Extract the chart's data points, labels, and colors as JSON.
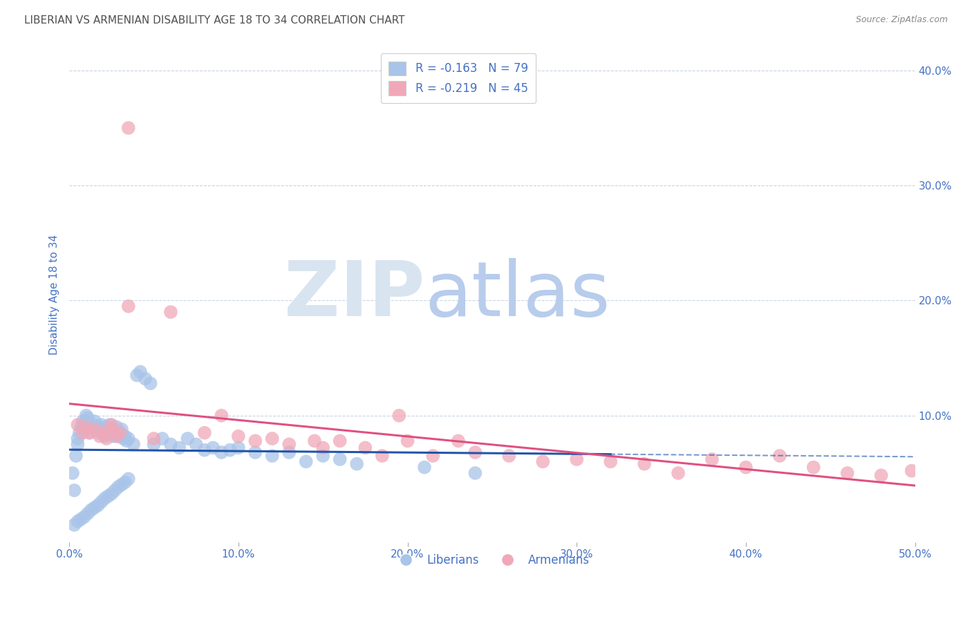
{
  "title": "LIBERIAN VS ARMENIAN DISABILITY AGE 18 TO 34 CORRELATION CHART",
  "source": "Source: ZipAtlas.com",
  "ylabel": "Disability Age 18 to 34",
  "xlim": [
    0.0,
    0.5
  ],
  "ylim": [
    -0.01,
    0.42
  ],
  "xticks": [
    0.0,
    0.1,
    0.2,
    0.3,
    0.4,
    0.5
  ],
  "yticks": [
    0.1,
    0.2,
    0.3,
    0.4
  ],
  "xtick_labels": [
    "0.0%",
    "10.0%",
    "20.0%",
    "30.0%",
    "40.0%",
    "50.0%"
  ],
  "ytick_labels": [
    "10.0%",
    "20.0%",
    "30.0%",
    "40.0%"
  ],
  "liberian_R": -0.163,
  "liberian_N": 79,
  "armenian_R": -0.219,
  "armenian_N": 45,
  "liberian_color": "#a8c4e8",
  "armenian_color": "#f0a8b8",
  "liberian_line_color": "#2255aa",
  "armenian_line_color": "#e05080",
  "watermark_zip_color": "#d8e4f0",
  "watermark_atlas_color": "#b8ccec",
  "background_color": "#ffffff",
  "grid_color": "#c8d4e4",
  "title_color": "#505050",
  "tick_label_color": "#4472c4",
  "legend_text_color": "#303030",
  "liberian_x": [
    0.002,
    0.003,
    0.004,
    0.005,
    0.005,
    0.006,
    0.007,
    0.008,
    0.008,
    0.009,
    0.01,
    0.01,
    0.011,
    0.012,
    0.013,
    0.014,
    0.015,
    0.016,
    0.017,
    0.018,
    0.019,
    0.02,
    0.021,
    0.022,
    0.023,
    0.024,
    0.025,
    0.026,
    0.027,
    0.028,
    0.029,
    0.03,
    0.031,
    0.032,
    0.033,
    0.034,
    0.035,
    0.038,
    0.04,
    0.042,
    0.045,
    0.048,
    0.05,
    0.055,
    0.06,
    0.065,
    0.07,
    0.075,
    0.08,
    0.085,
    0.09,
    0.095,
    0.1,
    0.11,
    0.12,
    0.13,
    0.14,
    0.15,
    0.16,
    0.17,
    0.003,
    0.005,
    0.007,
    0.009,
    0.011,
    0.013,
    0.015,
    0.017,
    0.019,
    0.021,
    0.023,
    0.025,
    0.027,
    0.029,
    0.031,
    0.033,
    0.035,
    0.21,
    0.24
  ],
  "liberian_y": [
    0.05,
    0.035,
    0.065,
    0.08,
    0.075,
    0.085,
    0.09,
    0.095,
    0.088,
    0.092,
    0.095,
    0.1,
    0.098,
    0.085,
    0.09,
    0.092,
    0.095,
    0.088,
    0.085,
    0.09,
    0.092,
    0.088,
    0.082,
    0.09,
    0.085,
    0.092,
    0.088,
    0.082,
    0.085,
    0.09,
    0.082,
    0.085,
    0.088,
    0.08,
    0.082,
    0.078,
    0.08,
    0.075,
    0.135,
    0.138,
    0.132,
    0.128,
    0.075,
    0.08,
    0.075,
    0.072,
    0.08,
    0.075,
    0.07,
    0.072,
    0.068,
    0.07,
    0.072,
    0.068,
    0.065,
    0.068,
    0.06,
    0.065,
    0.062,
    0.058,
    0.005,
    0.008,
    0.01,
    0.012,
    0.015,
    0.018,
    0.02,
    0.022,
    0.025,
    0.028,
    0.03,
    0.032,
    0.035,
    0.038,
    0.04,
    0.042,
    0.045,
    0.055,
    0.05
  ],
  "armenian_x": [
    0.005,
    0.008,
    0.01,
    0.012,
    0.015,
    0.018,
    0.02,
    0.022,
    0.025,
    0.028,
    0.03,
    0.035,
    0.035,
    0.05,
    0.06,
    0.08,
    0.09,
    0.1,
    0.11,
    0.12,
    0.13,
    0.145,
    0.15,
    0.16,
    0.175,
    0.185,
    0.195,
    0.2,
    0.215,
    0.23,
    0.24,
    0.26,
    0.28,
    0.3,
    0.32,
    0.34,
    0.36,
    0.38,
    0.4,
    0.42,
    0.44,
    0.46,
    0.48,
    0.498,
    0.025
  ],
  "armenian_y": [
    0.092,
    0.085,
    0.09,
    0.085,
    0.088,
    0.082,
    0.085,
    0.08,
    0.088,
    0.082,
    0.085,
    0.35,
    0.195,
    0.08,
    0.19,
    0.085,
    0.1,
    0.082,
    0.078,
    0.08,
    0.075,
    0.078,
    0.072,
    0.078,
    0.072,
    0.065,
    0.1,
    0.078,
    0.065,
    0.078,
    0.068,
    0.065,
    0.06,
    0.062,
    0.06,
    0.058,
    0.05,
    0.062,
    0.055,
    0.065,
    0.055,
    0.05,
    0.048,
    0.052,
    0.092
  ]
}
